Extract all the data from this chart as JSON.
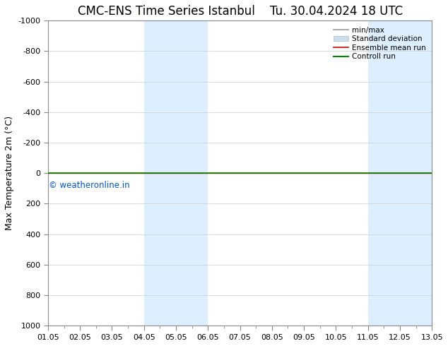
{
  "title": "CMC-ENS Time Series Istanbul",
  "title2": "Tu. 30.04.2024 18 UTC",
  "ylabel": "Max Temperature 2m (°C)",
  "ylim_bottom": 1000,
  "ylim_top": -1000,
  "yticks": [
    -1000,
    -800,
    -600,
    -400,
    -200,
    0,
    200,
    400,
    600,
    800,
    1000
  ],
  "xlim_start": 0,
  "xlim_end": 12,
  "xtick_labels": [
    "01.05",
    "02.05",
    "03.05",
    "04.05",
    "05.05",
    "06.05",
    "07.05",
    "08.05",
    "09.05",
    "10.05",
    "11.05",
    "12.05",
    "13.05"
  ],
  "shade_bands": [
    {
      "x_start": 3,
      "x_end": 4,
      "color": "#ddeeff"
    },
    {
      "x_start": 4,
      "x_end": 5,
      "color": "#ddeeff"
    },
    {
      "x_start": 10,
      "x_end": 11,
      "color": "#ddeeff"
    },
    {
      "x_start": 11,
      "x_end": 12,
      "color": "#ddeeff"
    }
  ],
  "control_run_color": "#008800",
  "ensemble_mean_color": "#cc0000",
  "watermark_text": "© weatheronline.in",
  "watermark_color": "#0055cc",
  "background_color": "#ffffff",
  "legend_items": [
    {
      "label": "min/max",
      "color": "#999999",
      "lw": 1.2,
      "type": "line"
    },
    {
      "label": "Standard deviation",
      "color": "#ccddee",
      "lw": 6,
      "type": "patch"
    },
    {
      "label": "Ensemble mean run",
      "color": "#cc0000",
      "lw": 1.2,
      "type": "line"
    },
    {
      "label": "Controll run",
      "color": "#008800",
      "lw": 1.5,
      "type": "line"
    }
  ],
  "title_fontsize": 12,
  "tick_fontsize": 8,
  "ylabel_fontsize": 9,
  "legend_fontsize": 7.5
}
